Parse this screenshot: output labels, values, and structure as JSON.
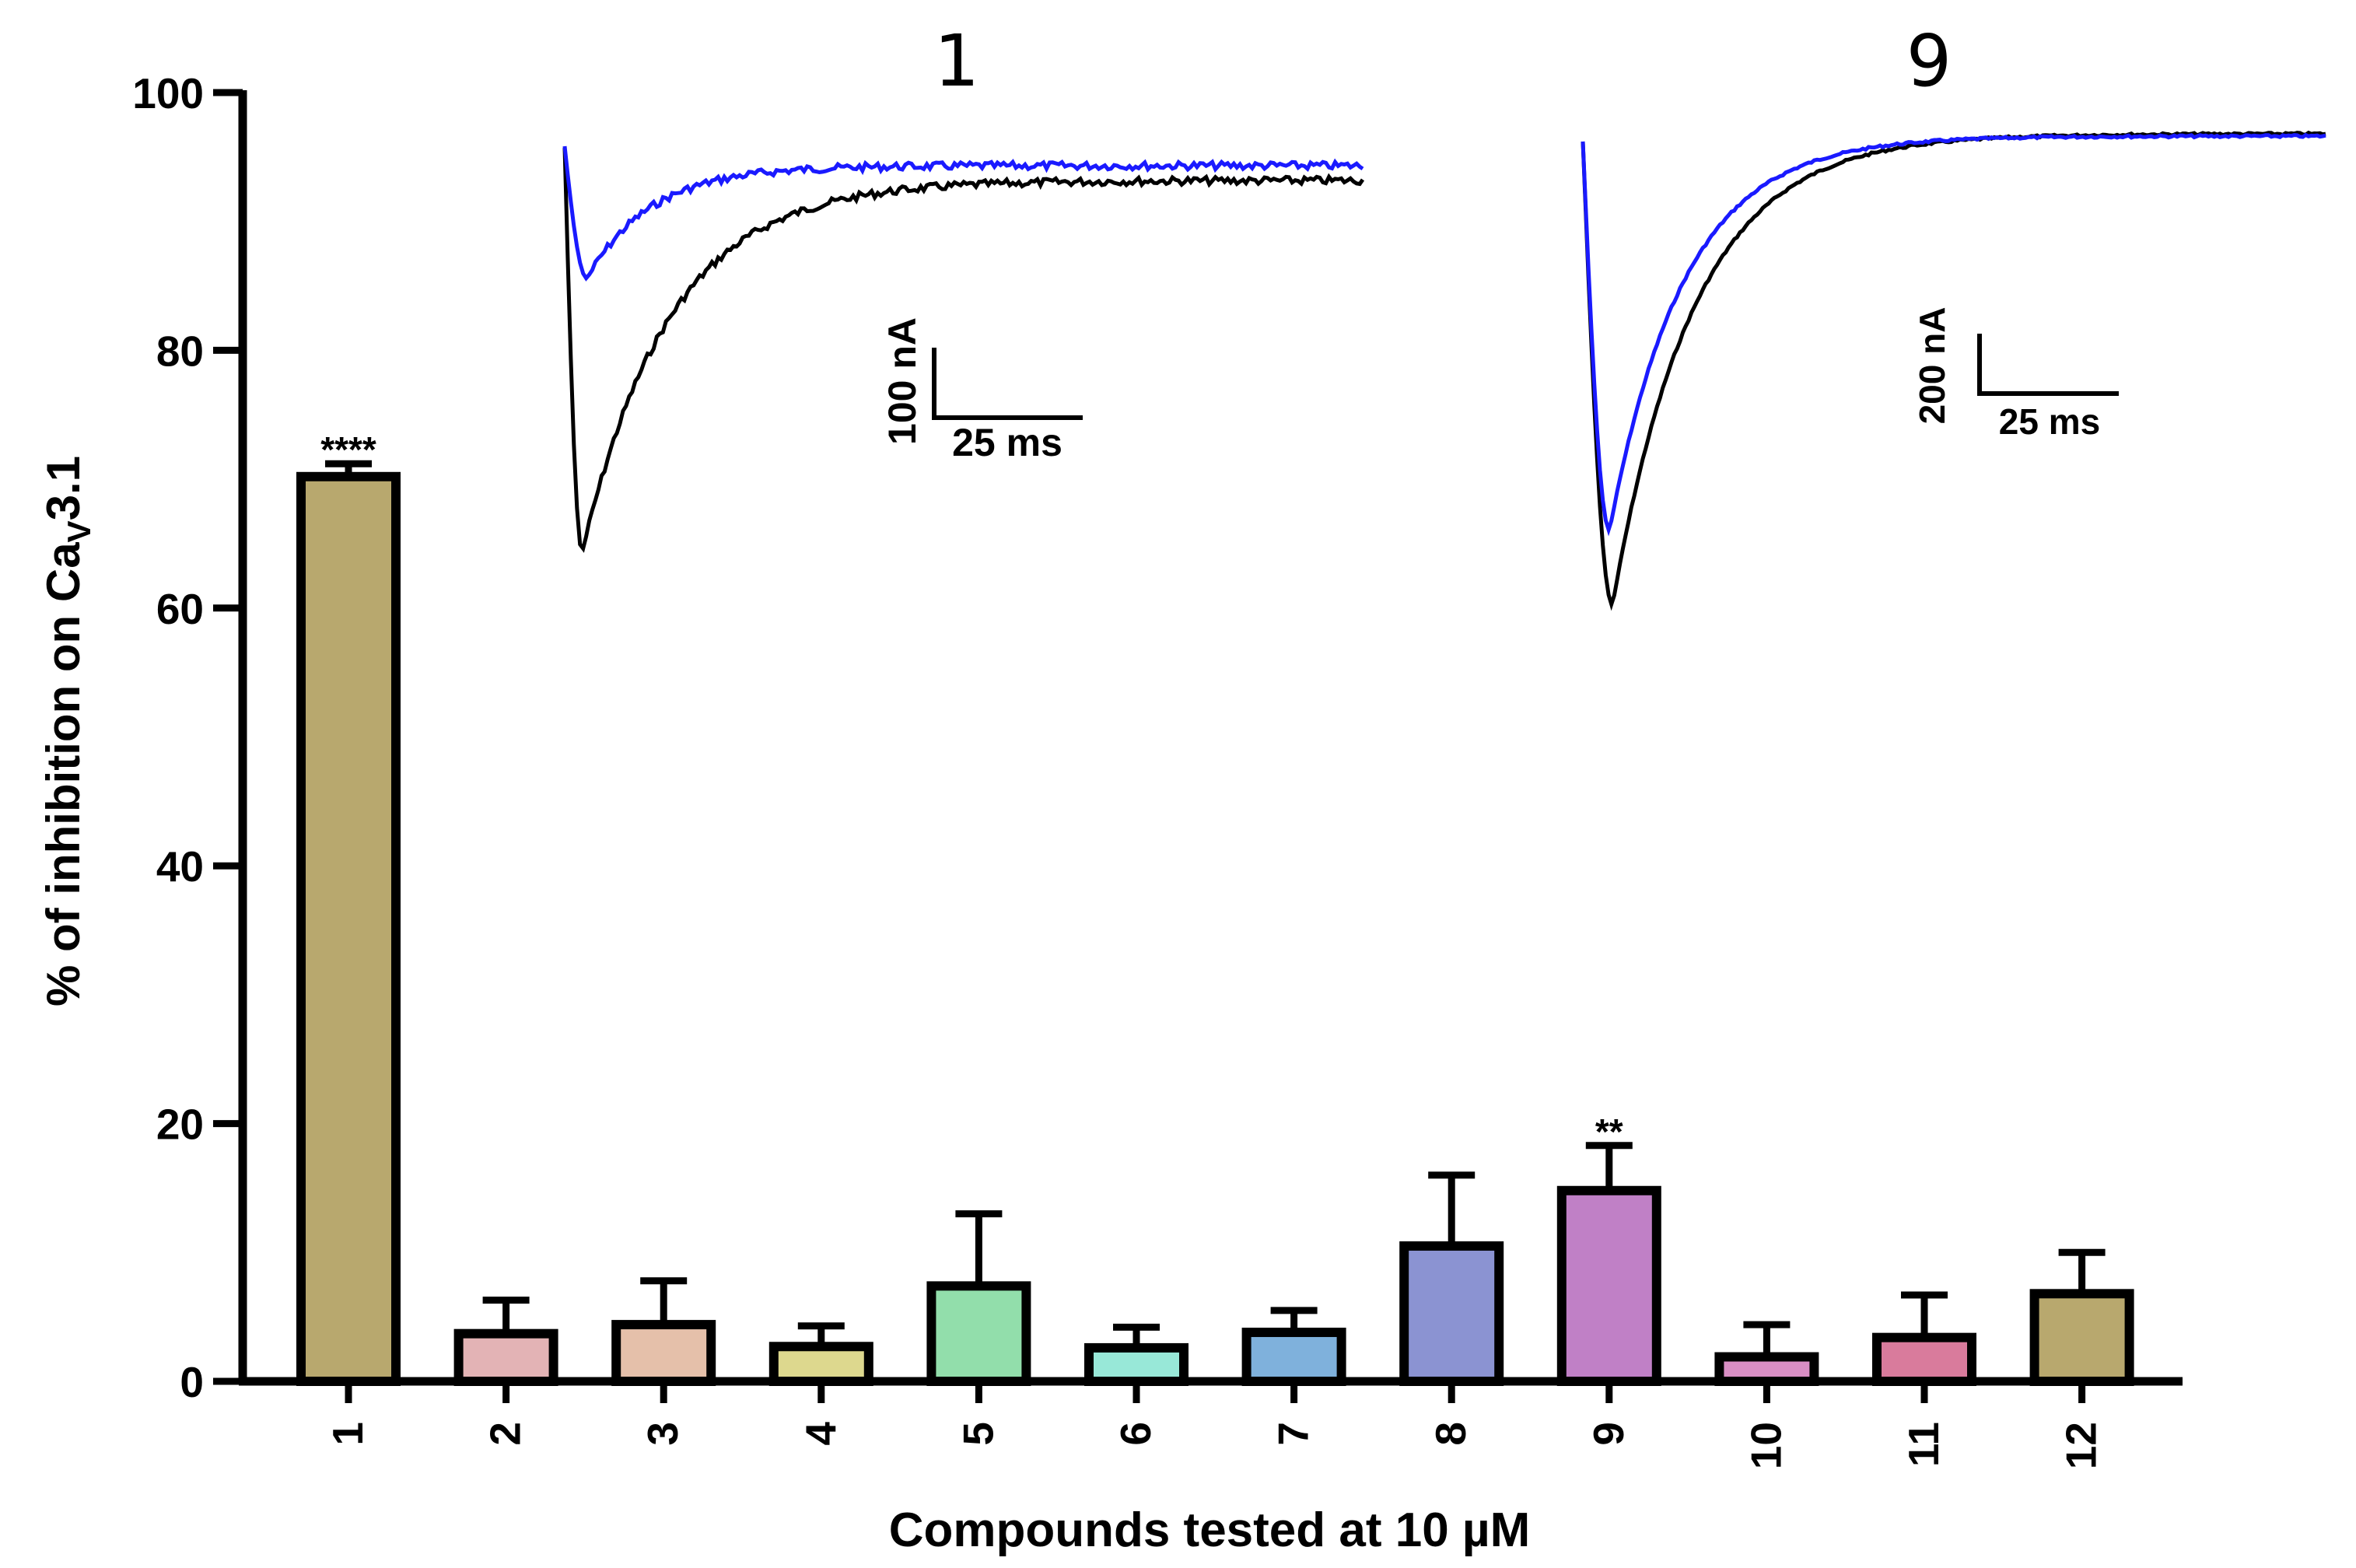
{
  "chart_data": {
    "type": "bar",
    "title": "",
    "xlabel": "Compounds tested at 10 µM",
    "ylabel_main": "% of inhibition on Ca",
    "ylabel_sub": "V",
    "ylabel_tail": "3.1",
    "ylim": [
      0,
      100
    ],
    "yticks": [
      0,
      20,
      40,
      60,
      80,
      100
    ],
    "categories": [
      "1",
      "2",
      "3",
      "4",
      "5",
      "6",
      "7",
      "8",
      "9",
      "10",
      "11",
      "12"
    ],
    "values": [
      70.2,
      3.7,
      4.4,
      2.7,
      7.4,
      2.6,
      3.8,
      10.5,
      14.8,
      1.9,
      3.4,
      6.8
    ],
    "errors": [
      1.0,
      2.6,
      3.4,
      1.6,
      5.6,
      1.6,
      1.7,
      5.5,
      3.5,
      2.5,
      3.3,
      3.2
    ],
    "colors": [
      "#b8a86e",
      "#e3b3b5",
      "#e5c0aa",
      "#ddd88e",
      "#92deab",
      "#98e8d8",
      "#7fb1dc",
      "#8b93d2",
      "#c080c6",
      "#d98ec4",
      "#d97b9c",
      "#b8a86e"
    ],
    "significance": [
      {
        "category": "1",
        "label": "****"
      },
      {
        "category": "9",
        "label": "**"
      }
    ],
    "insets": [
      {
        "title": "1",
        "scale_y_label": "100 nA",
        "scale_x_label": "25 ms",
        "trace_colors": {
          "control": "#000000",
          "compound": "#1a1aff"
        }
      },
      {
        "title": "9",
        "scale_y_label": "200 nA",
        "scale_x_label": "25 ms",
        "trace_colors": {
          "control": "#000000",
          "compound": "#1a1aff"
        }
      }
    ]
  }
}
